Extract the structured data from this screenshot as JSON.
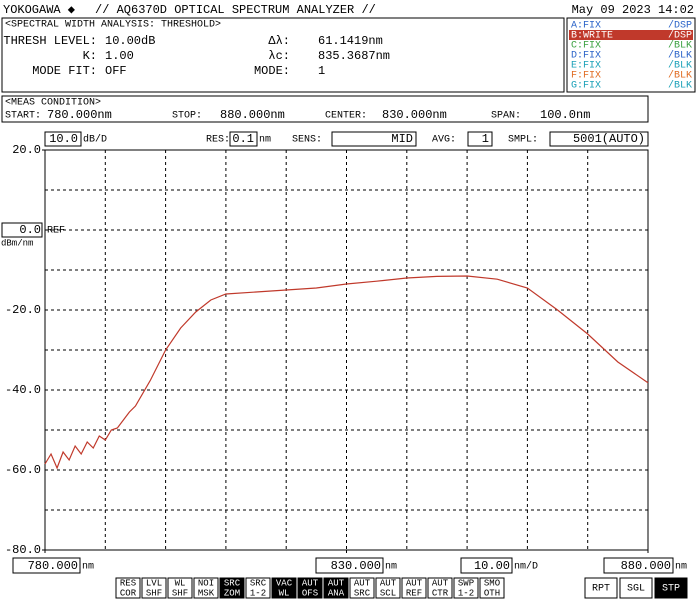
{
  "header": {
    "brand": "YOKOGAWA ◆",
    "title": "// AQ6370D OPTICAL SPECTRUM ANALYZER //",
    "datetime": "May 09 2023 14:02"
  },
  "analysis": {
    "title": "<SPECTRAL WIDTH ANALYSIS: THRESHOLD>",
    "rows": [
      [
        "THRESH LEVEL:",
        "10.00dB"
      ],
      [
        "K:",
        "1.00"
      ],
      [
        "MODE FIT:",
        "OFF"
      ],
      [
        "Δλ:",
        "61.1419nm"
      ],
      [
        "λc:",
        "835.3687nm"
      ],
      [
        "MODE:",
        "1"
      ]
    ]
  },
  "traces": [
    {
      "name": "A:FIX",
      "mode": "/DSP",
      "color": "#2a63c8",
      "active": false
    },
    {
      "name": "B:WRITE",
      "mode": "/DSP",
      "color": "#ffffff",
      "active": true
    },
    {
      "name": "C:FIX",
      "mode": "/BLK",
      "color": "#3aa040",
      "active": false
    },
    {
      "name": "D:FIX",
      "mode": "/BLK",
      "color": "#2a63c8",
      "active": false
    },
    {
      "name": "E:FIX",
      "mode": "/BLK",
      "color": "#1aa0b8",
      "active": false
    },
    {
      "name": "F:FIX",
      "mode": "/BLK",
      "color": "#e06a20",
      "active": false
    },
    {
      "name": "G:FIX",
      "mode": "/BLK",
      "color": "#1aa0b8",
      "active": false
    }
  ],
  "meas": {
    "title": "<MEAS CONDITION>",
    "items": [
      [
        "START:",
        "780.000nm"
      ],
      [
        "STOP:",
        "880.000nm"
      ],
      [
        "CENTER:",
        "830.000nm"
      ],
      [
        "SPAN:",
        "100.0nm"
      ]
    ]
  },
  "settings": [
    {
      "value": "10.0",
      "unit": "dB/D"
    },
    {
      "label": "RES:",
      "value": "0.1",
      "unit": "nm"
    },
    {
      "label": "SENS:",
      "value": "MID"
    },
    {
      "label": "AVG:",
      "value": "1"
    },
    {
      "label": "SMPL:",
      "value": "5001(AUTO)"
    }
  ],
  "softkeys": [
    {
      "top": "RES",
      "bottom": "COR",
      "active": false
    },
    {
      "top": "LVL",
      "bottom": "SHF",
      "active": false
    },
    {
      "top": "WL",
      "bottom": "SHF",
      "active": false
    },
    {
      "top": "NOI",
      "bottom": "MSK",
      "active": false
    },
    {
      "top": "SRC",
      "bottom": "ZOM",
      "active": true
    },
    {
      "top": "SRC",
      "bottom": "1-2",
      "active": false
    },
    {
      "top": "VAC",
      "bottom": "WL",
      "active": true
    },
    {
      "top": "AUT",
      "bottom": "OFS",
      "active": true
    },
    {
      "top": "AUT",
      "bottom": "ANA",
      "active": true
    },
    {
      "top": "AUT",
      "bottom": "SRC",
      "active": false
    },
    {
      "top": "AUT",
      "bottom": "SCL",
      "active": false
    },
    {
      "top": "AUT",
      "bottom": "REF",
      "active": false
    },
    {
      "top": "AUT",
      "bottom": "CTR",
      "active": false
    },
    {
      "top": "SWP",
      "bottom": "1-2",
      "active": false
    },
    {
      "top": "SMO",
      "bottom": "OTH",
      "active": false
    }
  ],
  "sweep_keys": [
    {
      "label": "RPT",
      "active": false
    },
    {
      "label": "SGL",
      "active": false
    },
    {
      "label": "STP",
      "active": true
    }
  ],
  "chart_data": {
    "type": "line",
    "x": [
      780,
      781,
      782,
      783,
      784,
      785,
      786,
      787,
      788,
      789,
      790,
      791,
      792,
      793,
      794,
      795,
      797.5,
      800,
      802.5,
      805,
      807.5,
      810,
      815,
      820,
      825,
      830,
      835,
      840,
      845,
      850,
      855,
      860,
      865,
      870,
      875,
      880
    ],
    "values": [
      -58.5,
      -56,
      -59.5,
      -55.5,
      -57.5,
      -54,
      -56,
      -53,
      -54.5,
      -51.5,
      -52.5,
      -50,
      -49.5,
      -47.5,
      -45.5,
      -44,
      -37.5,
      -30,
      -24.5,
      -20.5,
      -17.5,
      -16,
      -15.5,
      -15,
      -14.5,
      -13.5,
      -12.8,
      -12,
      -11.6,
      -11.5,
      -12.3,
      -14.5,
      -20,
      -26,
      -33,
      -38.2
    ],
    "color": "#c0392b",
    "xlim": [
      780,
      880
    ],
    "ylim": [
      -80,
      20
    ],
    "xticks": [
      {
        "value": 780,
        "label": "780.000"
      },
      {
        "value": 830,
        "label": "830.000"
      },
      {
        "value": 880,
        "label": "880.000"
      }
    ],
    "xgrid": [
      790,
      800,
      810,
      820,
      830,
      840,
      850,
      860,
      870
    ],
    "yticks": [
      {
        "value": 20,
        "label": "20.0"
      },
      {
        "value": 0,
        "label": "0.0"
      },
      {
        "value": -20,
        "label": "-20.0"
      },
      {
        "value": -40,
        "label": "-40.0"
      },
      {
        "value": -60,
        "label": "-60.0"
      },
      {
        "value": -80,
        "label": "-80.0"
      }
    ],
    "ygrid": [
      10,
      -10,
      -30,
      -50,
      -70
    ],
    "ref_tick": 1,
    "ref_label": "REF",
    "y_unit": "dBm/nm",
    "x_unit": "nm",
    "x_div": "10.00",
    "x_div_unit": "nm/D",
    "grid": true
  }
}
